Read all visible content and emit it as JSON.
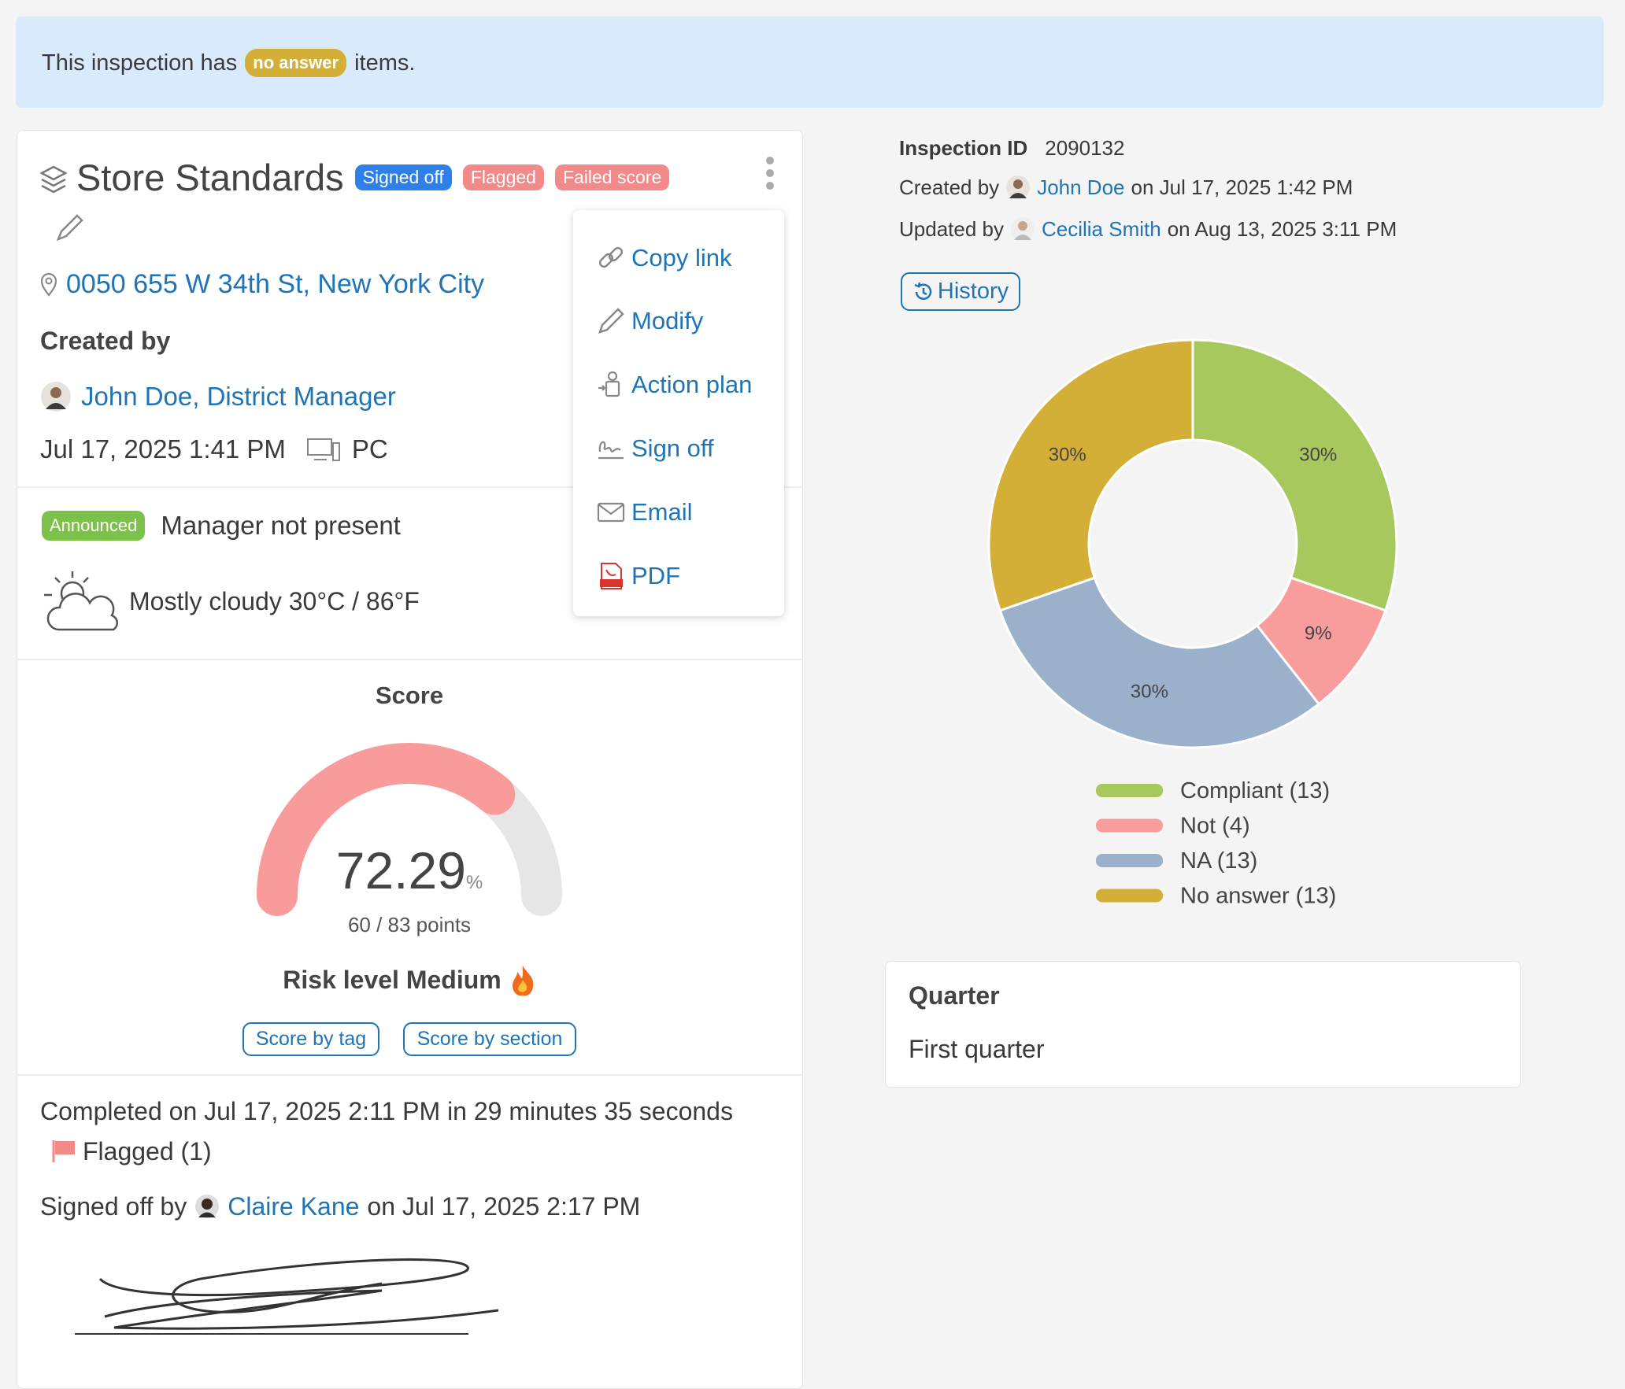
{
  "banner": {
    "before": "This inspection has",
    "badge": "no answer",
    "after": "items."
  },
  "inspection": {
    "title": "Store Standards",
    "badges": [
      "Signed off",
      "Flagged",
      "Failed score"
    ],
    "address": "0050 655 W 34th St, New York City",
    "created_by_label": "Created by",
    "creator": "John Doe, District Manager",
    "created_at": "Jul 17, 2025 1:41 PM",
    "device": "PC",
    "announced": "Announced",
    "manager_note": "Manager not present",
    "weather": "Mostly cloudy 30°C / 86°F"
  },
  "menu": [
    "Copy link",
    "Modify",
    "Action plan",
    "Sign off",
    "Email",
    "PDF"
  ],
  "score": {
    "title": "Score",
    "value": 72.29,
    "unit": "%",
    "range": [
      0,
      100
    ],
    "points": "60 / 83 points",
    "risk": "Risk level Medium",
    "buttons": [
      "Score by tag",
      "Score by section"
    ]
  },
  "completion": {
    "completed": "Completed on Jul 17, 2025 2:11 PM in 29 minutes 35 seconds",
    "flagged": "Flagged (1)",
    "signed_prefix": "Signed off by",
    "signer": "Claire Kane",
    "signed_suffix": "on Jul 17, 2025 2:17 PM"
  },
  "meta": {
    "id_label": "Inspection ID",
    "id": "2090132",
    "created_prefix": "Created by",
    "created_name": "John Doe",
    "created_suffix": "on Jul 17, 2025 1:42 PM",
    "updated_prefix": "Updated by",
    "updated_name": "Cecilia Smith",
    "updated_suffix": "on Aug 13, 2025 3:11 PM",
    "history": "History"
  },
  "chart_data": {
    "type": "pie",
    "categories": [
      "Compliant (13)",
      "Not (4)",
      "NA (13)",
      "No answer (13)"
    ],
    "values": [
      30,
      9,
      30,
      30
    ],
    "value_labels": [
      "30%",
      "9%",
      "30%",
      "30%"
    ],
    "colors": [
      "#a6c85c",
      "#f99c9c",
      "#9bb0ca",
      "#d4af38"
    ]
  },
  "quarter": {
    "label": "Quarter",
    "value": "First quarter"
  }
}
